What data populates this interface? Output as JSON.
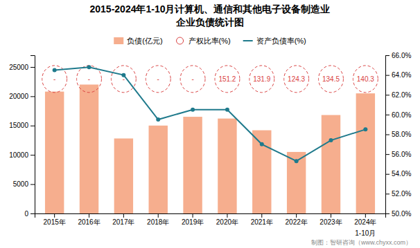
{
  "chart_data": {
    "type": "bar",
    "title": "2015-2024年1-10月计算机、通信和其他电子设备制造业",
    "subtitle": "企业负债统计图",
    "categories": [
      "2015年",
      "2016年",
      "2017年",
      "2018年",
      "2019年",
      "2020年",
      "2021年",
      "2022年",
      "2023年",
      "2024年"
    ],
    "series": [
      {
        "name": "负债(亿元)",
        "type": "bar",
        "color": "#F5A07A",
        "values": [
          20800,
          22000,
          12800,
          15000,
          16500,
          16200,
          14200,
          10500,
          16800,
          20500
        ]
      },
      {
        "name": "产权比率(%)",
        "type": "label",
        "color": "#D94040",
        "marker": "circle",
        "line_style": "dashed",
        "data_labels": true,
        "values": [
          null,
          null,
          null,
          null,
          null,
          151.2,
          131.9,
          124.3,
          134.5,
          140.3
        ],
        "value_labels": [
          "-",
          "-",
          "-",
          "-",
          "-",
          "151.2",
          "131.9",
          "124.3",
          "134.5",
          "140.3"
        ]
      },
      {
        "name": "资产负债率(%)",
        "type": "line",
        "axis": "y2",
        "color": "#1F7A8C",
        "marker": "circle",
        "line_style": "solid",
        "values": [
          64.5,
          64.8,
          64.0,
          59.5,
          60.5,
          60.5,
          57.0,
          55.3,
          57.4,
          58.5
        ]
      }
    ],
    "ylim": [
      0,
      27000
    ],
    "yticks": [
      0,
      5000,
      10000,
      15000,
      20000,
      25000
    ],
    "y2lim": [
      50,
      66
    ],
    "y2ticks": [
      {
        "value": 50,
        "label": "50.0%"
      },
      {
        "value": 52,
        "label": "52.0%"
      },
      {
        "value": 54,
        "label": "54.0%"
      },
      {
        "value": 56,
        "label": "56.0%"
      },
      {
        "value": 58,
        "label": "58.0%"
      },
      {
        "value": 60,
        "label": "60.0%"
      },
      {
        "value": 62,
        "label": "62.0%"
      },
      {
        "value": 64,
        "label": "64.0%"
      },
      {
        "value": 66,
        "label": "66.0%"
      }
    ],
    "annotations": [
      {
        "text": "1-10月",
        "x": "2024年"
      },
      {
        "text": "制图：智研咨询（www.chyxx.com）"
      }
    ],
    "grid": false,
    "legend": "top"
  }
}
